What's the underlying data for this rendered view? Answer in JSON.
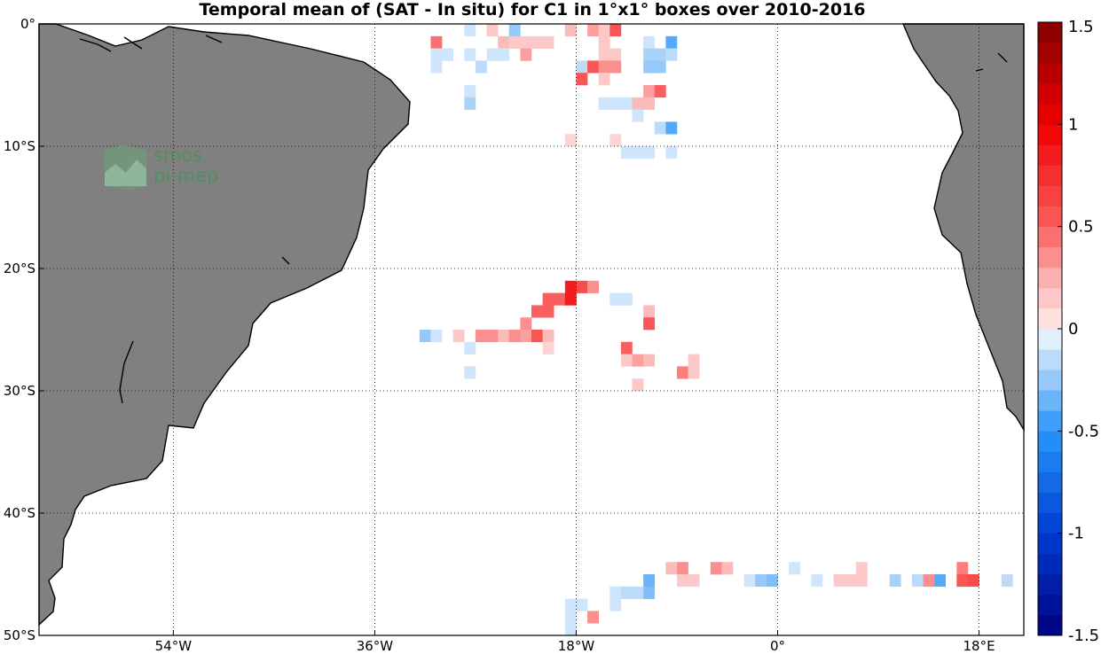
{
  "title": "Temporal mean of (SAT - In situ) for C1 in 1°x1° boxes over 2010-2016",
  "logo": {
    "line1": "smos",
    "line2": "pi-mep"
  },
  "map": {
    "lon_range": [
      -66,
      22
    ],
    "lat_range": [
      -50,
      0
    ],
    "lon_ticks": [
      {
        "value": -54,
        "label": "54°W"
      },
      {
        "value": -36,
        "label": "36°W"
      },
      {
        "value": -18,
        "label": "18°W"
      },
      {
        "value": 0,
        "label": "0°"
      },
      {
        "value": 18,
        "label": "18°E"
      }
    ],
    "lat_ticks": [
      {
        "value": 0,
        "label": "0°"
      },
      {
        "value": -10,
        "label": "10°S"
      },
      {
        "value": -20,
        "label": "20°S"
      },
      {
        "value": -30,
        "label": "30°S"
      },
      {
        "value": -40,
        "label": "40°S"
      },
      {
        "value": -50,
        "label": "50°S"
      }
    ],
    "land_color": "#808080",
    "grid": true
  },
  "colorbar": {
    "range": [
      -1.5,
      1.5
    ],
    "levels": 30,
    "ticks": [
      {
        "value": 1.5,
        "label": "1.5"
      },
      {
        "value": 1,
        "label": "1"
      },
      {
        "value": 0.5,
        "label": "0.5"
      },
      {
        "value": 0,
        "label": "0"
      },
      {
        "value": -0.5,
        "label": "-0.5"
      },
      {
        "value": -1,
        "label": "-1"
      },
      {
        "value": -1.5,
        "label": "-1.5"
      }
    ]
  },
  "chart_data": {
    "type": "heatmap",
    "title": "Temporal mean of (SAT - In situ) for C1 in 1°x1° boxes over 2010-2016",
    "xlabel": "",
    "ylabel": "",
    "x_units": "degrees longitude (E positive)",
    "y_units": "degrees latitude (N positive)",
    "xlim": [
      -66,
      22
    ],
    "ylim": [
      -50,
      0
    ],
    "cell_size_deg": 1,
    "value_range": [
      -1.5,
      1.5
    ],
    "cells": [
      {
        "lon": -27.5,
        "lat": -0.5,
        "value": -0.1
      },
      {
        "lon": -25.5,
        "lat": -0.5,
        "value": 0.15
      },
      {
        "lon": -23.5,
        "lat": -0.5,
        "value": -0.25
      },
      {
        "lon": -18.5,
        "lat": -0.5,
        "value": 0.2
      },
      {
        "lon": -16.5,
        "lat": -0.5,
        "value": 0.3
      },
      {
        "lon": -15.5,
        "lat": -0.5,
        "value": 0.15
      },
      {
        "lon": -14.5,
        "lat": -0.5,
        "value": 0.55
      },
      {
        "lon": -30.5,
        "lat": -1.5,
        "value": 0.45
      },
      {
        "lon": -24.5,
        "lat": -1.5,
        "value": 0.2
      },
      {
        "lon": -23.5,
        "lat": -1.5,
        "value": 0.15
      },
      {
        "lon": -22.5,
        "lat": -1.5,
        "value": 0.15
      },
      {
        "lon": -21.5,
        "lat": -1.5,
        "value": 0.15
      },
      {
        "lon": -20.5,
        "lat": -1.5,
        "value": 0.15
      },
      {
        "lon": -15.5,
        "lat": -1.5,
        "value": 0.15
      },
      {
        "lon": -11.5,
        "lat": -1.5,
        "value": -0.1
      },
      {
        "lon": -9.5,
        "lat": -1.5,
        "value": -0.4
      },
      {
        "lon": -30.5,
        "lat": -2.5,
        "value": -0.1
      },
      {
        "lon": -29.5,
        "lat": -2.5,
        "value": -0.1
      },
      {
        "lon": -27.5,
        "lat": -2.5,
        "value": -0.1
      },
      {
        "lon": -25.5,
        "lat": -2.5,
        "value": -0.1
      },
      {
        "lon": -24.5,
        "lat": -2.5,
        "value": -0.1
      },
      {
        "lon": -22.5,
        "lat": -2.5,
        "value": 0.3
      },
      {
        "lon": -15.5,
        "lat": -2.5,
        "value": 0.15
      },
      {
        "lon": -14.5,
        "lat": -2.5,
        "value": 0.15
      },
      {
        "lon": -11.5,
        "lat": -2.5,
        "value": -0.2
      },
      {
        "lon": -10.5,
        "lat": -2.5,
        "value": -0.2
      },
      {
        "lon": -9.5,
        "lat": -2.5,
        "value": -0.15
      },
      {
        "lon": -30.5,
        "lat": -3.5,
        "value": -0.1
      },
      {
        "lon": -26.5,
        "lat": -3.5,
        "value": -0.15
      },
      {
        "lon": -17.5,
        "lat": -3.5,
        "value": -0.15
      },
      {
        "lon": -16.5,
        "lat": -3.5,
        "value": 0.55
      },
      {
        "lon": -15.5,
        "lat": -3.5,
        "value": 0.35
      },
      {
        "lon": -14.5,
        "lat": -3.5,
        "value": 0.35
      },
      {
        "lon": -11.5,
        "lat": -3.5,
        "value": -0.25
      },
      {
        "lon": -10.5,
        "lat": -3.5,
        "value": -0.25
      },
      {
        "lon": -17.5,
        "lat": -4.5,
        "value": 0.55
      },
      {
        "lon": -15.5,
        "lat": -4.5,
        "value": 0.15
      },
      {
        "lon": -27.5,
        "lat": -5.5,
        "value": -0.1
      },
      {
        "lon": -11.5,
        "lat": -5.5,
        "value": 0.3
      },
      {
        "lon": -10.5,
        "lat": -5.5,
        "value": 0.5
      },
      {
        "lon": -27.5,
        "lat": -6.5,
        "value": -0.2
      },
      {
        "lon": -15.5,
        "lat": -6.5,
        "value": -0.1
      },
      {
        "lon": -14.5,
        "lat": -6.5,
        "value": -0.1
      },
      {
        "lon": -13.5,
        "lat": -6.5,
        "value": -0.1
      },
      {
        "lon": -12.5,
        "lat": -6.5,
        "value": 0.2
      },
      {
        "lon": -11.5,
        "lat": -6.5,
        "value": 0.2
      },
      {
        "lon": -12.5,
        "lat": -7.5,
        "value": -0.1
      },
      {
        "lon": -10.5,
        "lat": -8.5,
        "value": -0.15
      },
      {
        "lon": -9.5,
        "lat": -8.5,
        "value": -0.4
      },
      {
        "lon": -18.5,
        "lat": -9.5,
        "value": 0.1
      },
      {
        "lon": -14.5,
        "lat": -9.5,
        "value": 0.1
      },
      {
        "lon": -13.5,
        "lat": -10.5,
        "value": -0.1
      },
      {
        "lon": -12.5,
        "lat": -10.5,
        "value": -0.1
      },
      {
        "lon": -11.5,
        "lat": -10.5,
        "value": -0.1
      },
      {
        "lon": -9.5,
        "lat": -10.5,
        "value": -0.1
      },
      {
        "lon": -18.5,
        "lat": -21.5,
        "value": 0.85
      },
      {
        "lon": -17.5,
        "lat": -21.5,
        "value": 0.6
      },
      {
        "lon": -16.5,
        "lat": -21.5,
        "value": 0.35
      },
      {
        "lon": -20.5,
        "lat": -22.5,
        "value": 0.5
      },
      {
        "lon": -19.5,
        "lat": -22.5,
        "value": 0.5
      },
      {
        "lon": -18.5,
        "lat": -22.5,
        "value": 0.85
      },
      {
        "lon": -14.5,
        "lat": -22.5,
        "value": -0.1
      },
      {
        "lon": -13.5,
        "lat": -22.5,
        "value": -0.1
      },
      {
        "lon": -21.5,
        "lat": -23.5,
        "value": 0.5
      },
      {
        "lon": -20.5,
        "lat": -23.5,
        "value": 0.5
      },
      {
        "lon": -11.5,
        "lat": -23.5,
        "value": 0.2
      },
      {
        "lon": -22.5,
        "lat": -24.5,
        "value": 0.35
      },
      {
        "lon": -11.5,
        "lat": -24.5,
        "value": 0.55
      },
      {
        "lon": -31.5,
        "lat": -25.5,
        "value": -0.25
      },
      {
        "lon": -30.5,
        "lat": -25.5,
        "value": -0.1
      },
      {
        "lon": -28.5,
        "lat": -25.5,
        "value": 0.15
      },
      {
        "lon": -26.5,
        "lat": -25.5,
        "value": 0.35
      },
      {
        "lon": -25.5,
        "lat": -25.5,
        "value": 0.35
      },
      {
        "lon": -24.5,
        "lat": -25.5,
        "value": 0.2
      },
      {
        "lon": -23.5,
        "lat": -25.5,
        "value": 0.35
      },
      {
        "lon": -22.5,
        "lat": -25.5,
        "value": 0.3
      },
      {
        "lon": -21.5,
        "lat": -25.5,
        "value": 0.55
      },
      {
        "lon": -20.5,
        "lat": -25.5,
        "value": 0.2
      },
      {
        "lon": -27.5,
        "lat": -26.5,
        "value": -0.1
      },
      {
        "lon": -20.5,
        "lat": -26.5,
        "value": 0.1
      },
      {
        "lon": -13.5,
        "lat": -26.5,
        "value": 0.5
      },
      {
        "lon": -13.5,
        "lat": -27.5,
        "value": 0.15
      },
      {
        "lon": -12.5,
        "lat": -27.5,
        "value": 0.3
      },
      {
        "lon": -11.5,
        "lat": -27.5,
        "value": 0.2
      },
      {
        "lon": -7.5,
        "lat": -27.5,
        "value": 0.15
      },
      {
        "lon": -27.5,
        "lat": -28.5,
        "value": -0.1
      },
      {
        "lon": -8.5,
        "lat": -28.5,
        "value": 0.4
      },
      {
        "lon": -7.5,
        "lat": -28.5,
        "value": 0.15
      },
      {
        "lon": -12.5,
        "lat": -29.5,
        "value": 0.15
      },
      {
        "lon": -14.5,
        "lat": -46.5,
        "value": -0.1
      },
      {
        "lon": -9.5,
        "lat": -44.5,
        "value": 0.2
      },
      {
        "lon": -8.5,
        "lat": -44.5,
        "value": 0.35
      },
      {
        "lon": -5.5,
        "lat": -44.5,
        "value": 0.35
      },
      {
        "lon": -4.5,
        "lat": -44.5,
        "value": 0.2
      },
      {
        "lon": 1.5,
        "lat": -44.5,
        "value": -0.1
      },
      {
        "lon": 7.5,
        "lat": -44.5,
        "value": 0.15
      },
      {
        "lon": 16.5,
        "lat": -44.5,
        "value": 0.4
      },
      {
        "lon": -11.5,
        "lat": -45.5,
        "value": -0.35
      },
      {
        "lon": -8.5,
        "lat": -45.5,
        "value": 0.15
      },
      {
        "lon": -7.5,
        "lat": -45.5,
        "value": 0.15
      },
      {
        "lon": -2.5,
        "lat": -45.5,
        "value": -0.1
      },
      {
        "lon": -1.5,
        "lat": -45.5,
        "value": -0.25
      },
      {
        "lon": -0.5,
        "lat": -45.5,
        "value": -0.3
      },
      {
        "lon": 3.5,
        "lat": -45.5,
        "value": -0.1
      },
      {
        "lon": 5.5,
        "lat": -45.5,
        "value": 0.15
      },
      {
        "lon": 6.5,
        "lat": -45.5,
        "value": 0.15
      },
      {
        "lon": 7.5,
        "lat": -45.5,
        "value": 0.15
      },
      {
        "lon": 10.5,
        "lat": -45.5,
        "value": -0.2
      },
      {
        "lon": 12.5,
        "lat": -45.5,
        "value": -0.15
      },
      {
        "lon": 13.5,
        "lat": -45.5,
        "value": 0.35
      },
      {
        "lon": 14.5,
        "lat": -45.5,
        "value": -0.4
      },
      {
        "lon": 16.5,
        "lat": -45.5,
        "value": 0.55
      },
      {
        "lon": 17.5,
        "lat": -45.5,
        "value": 0.6
      },
      {
        "lon": 20.5,
        "lat": -45.5,
        "value": -0.15
      },
      {
        "lon": -13.5,
        "lat": -46.5,
        "value": -0.15
      },
      {
        "lon": -12.5,
        "lat": -46.5,
        "value": -0.15
      },
      {
        "lon": -11.5,
        "lat": -46.5,
        "value": -0.3
      },
      {
        "lon": -18.5,
        "lat": -47.5,
        "value": -0.1
      },
      {
        "lon": -17.5,
        "lat": -47.5,
        "value": -0.1
      },
      {
        "lon": -14.5,
        "lat": -47.5,
        "value": -0.1
      },
      {
        "lon": -18.5,
        "lat": -48.5,
        "value": -0.1
      },
      {
        "lon": -16.5,
        "lat": -48.5,
        "value": 0.35
      },
      {
        "lon": -18.5,
        "lat": -49.5,
        "value": -0.1
      }
    ]
  }
}
